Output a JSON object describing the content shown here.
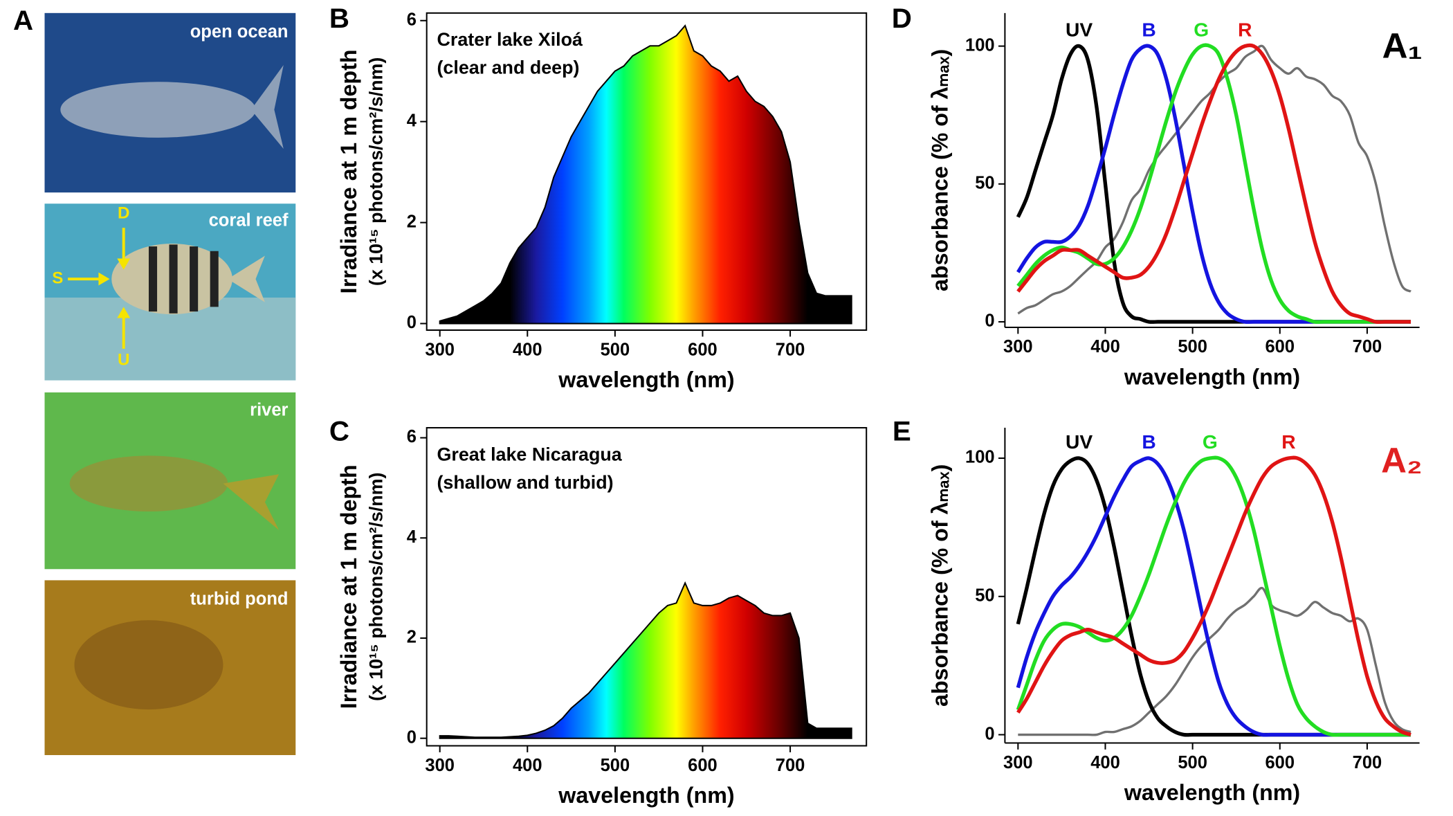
{
  "photo_panel": {
    "panel_label": "A",
    "photos": [
      {
        "label": "open ocean"
      },
      {
        "label": "coral reef",
        "arrows": [
          "D",
          "S",
          "U"
        ]
      },
      {
        "label": "river"
      },
      {
        "label": "turbid pond"
      }
    ]
  },
  "chart_data": [
    {
      "type": "area",
      "panel_label": "B",
      "title": [
        "Crater lake Xiloá",
        "(clear and deep)"
      ],
      "xlabel": "wavelength (nm)",
      "ylabel": [
        "Irradiance at 1 m depth",
        "(x 10¹⁵ photons/cm²/s/nm)"
      ],
      "x": [
        300,
        310,
        320,
        330,
        340,
        350,
        360,
        370,
        380,
        390,
        400,
        410,
        420,
        430,
        440,
        450,
        460,
        470,
        480,
        490,
        500,
        510,
        520,
        530,
        540,
        550,
        560,
        570,
        580,
        590,
        600,
        610,
        620,
        630,
        640,
        650,
        660,
        670,
        680,
        690,
        700,
        710,
        720,
        730,
        740,
        750,
        760,
        770
      ],
      "values": [
        0.05,
        0.1,
        0.15,
        0.25,
        0.35,
        0.45,
        0.6,
        0.8,
        1.2,
        1.5,
        1.7,
        1.9,
        2.3,
        2.9,
        3.3,
        3.7,
        4.0,
        4.3,
        4.6,
        4.8,
        5.0,
        5.1,
        5.3,
        5.4,
        5.5,
        5.5,
        5.6,
        5.7,
        5.9,
        5.4,
        5.3,
        5.1,
        5.0,
        4.8,
        4.9,
        4.6,
        4.4,
        4.3,
        4.1,
        3.8,
        3.2,
        2.0,
        1.0,
        0.6,
        0.55,
        0.55,
        0.55,
        0.55
      ],
      "xlim": [
        285,
        787
      ],
      "ylim": [
        -0.13,
        6.15
      ],
      "xticks": [
        300,
        400,
        500,
        600,
        700
      ],
      "yticks": [
        0,
        2,
        4,
        6
      ],
      "frame": true
    },
    {
      "type": "area",
      "panel_label": "C",
      "title": [
        "Great lake Nicaragua",
        "(shallow and turbid)"
      ],
      "xlabel": "wavelength (nm)",
      "ylabel": [
        "Irradiance at 1 m depth",
        "(x 10¹⁵ photons/cm²/s/nm)"
      ],
      "x": [
        300,
        310,
        320,
        330,
        340,
        350,
        360,
        370,
        380,
        390,
        400,
        410,
        420,
        430,
        440,
        450,
        460,
        470,
        480,
        490,
        500,
        510,
        520,
        530,
        540,
        550,
        560,
        570,
        580,
        590,
        600,
        610,
        620,
        630,
        640,
        650,
        660,
        670,
        680,
        690,
        700,
        710,
        720,
        730,
        740,
        750,
        760,
        770
      ],
      "values": [
        0.05,
        0.05,
        0.04,
        0.03,
        0.02,
        0.02,
        0.02,
        0.02,
        0.03,
        0.04,
        0.06,
        0.1,
        0.16,
        0.25,
        0.4,
        0.6,
        0.75,
        0.9,
        1.1,
        1.3,
        1.5,
        1.7,
        1.9,
        2.1,
        2.3,
        2.5,
        2.65,
        2.7,
        3.1,
        2.7,
        2.65,
        2.65,
        2.7,
        2.8,
        2.85,
        2.75,
        2.65,
        2.5,
        2.45,
        2.45,
        2.5,
        2.0,
        0.3,
        0.2,
        0.2,
        0.2,
        0.2,
        0.2
      ],
      "xlim": [
        285,
        787
      ],
      "ylim": [
        -0.15,
        6.2
      ],
      "xticks": [
        300,
        400,
        500,
        600,
        700
      ],
      "yticks": [
        0,
        2,
        4,
        6
      ],
      "frame": true
    },
    {
      "type": "line",
      "panel_label": "D",
      "corner_label": "A₁",
      "corner_color": "#000000",
      "xlabel": "wavelength (nm)",
      "ylabel": "absorbance (% of λₘₐₓ)",
      "x": [
        300,
        310,
        320,
        330,
        340,
        350,
        360,
        370,
        380,
        390,
        400,
        410,
        420,
        430,
        440,
        450,
        460,
        470,
        480,
        490,
        500,
        510,
        520,
        530,
        540,
        550,
        560,
        570,
        580,
        590,
        600,
        610,
        620,
        630,
        640,
        650,
        660,
        670,
        680,
        690,
        700,
        710,
        720,
        730,
        740,
        750
      ],
      "series": [
        {
          "color": "#707070",
          "values": [
            3,
            5,
            6,
            8,
            10,
            11,
            13,
            16,
            19,
            22,
            27,
            30,
            36,
            44,
            48,
            55,
            60,
            64,
            68,
            72,
            76,
            80,
            83,
            87,
            90,
            92,
            96,
            98,
            100,
            95,
            92,
            90,
            92,
            89,
            88,
            86,
            82,
            80,
            75,
            65,
            60,
            50,
            35,
            22,
            13,
            11
          ]
        },
        {
          "name": "UV",
          "color": "#000000",
          "values": [
            38,
            45,
            55,
            65,
            75,
            88,
            97,
            100,
            95,
            78,
            50,
            22,
            7,
            2,
            1,
            0,
            0,
            0,
            0,
            0,
            0,
            0,
            0,
            0,
            0,
            0,
            0,
            0,
            0,
            0,
            0,
            0,
            0,
            0,
            0,
            0,
            0,
            0,
            0,
            0,
            0,
            0,
            0,
            0,
            0,
            0
          ]
        },
        {
          "name": "B",
          "color": "#1414e0",
          "values": [
            18,
            23,
            27,
            29,
            29,
            29,
            31,
            35,
            42,
            52,
            63,
            75,
            86,
            95,
            99,
            100,
            97,
            88,
            74,
            57,
            40,
            25,
            14,
            7,
            3,
            1,
            0,
            0,
            0,
            0,
            0,
            0,
            0,
            0,
            0,
            0,
            0,
            0,
            0,
            0,
            0,
            0,
            0,
            0,
            0,
            0
          ]
        },
        {
          "name": "G",
          "color": "#22dd22",
          "values": [
            13,
            17,
            21,
            24,
            26,
            27,
            26,
            25,
            23,
            21,
            21,
            23,
            27,
            33,
            41,
            51,
            62,
            73,
            83,
            91,
            97,
            100,
            100,
            97,
            88,
            75,
            58,
            41,
            26,
            15,
            8,
            4,
            2,
            1,
            0,
            0,
            0,
            0,
            0,
            0,
            0,
            0,
            0,
            0,
            0,
            0
          ]
        },
        {
          "name": "R",
          "color": "#e01414",
          "values": [
            11,
            15,
            19,
            22,
            24,
            26,
            26,
            26,
            24,
            22,
            20,
            18,
            16,
            16,
            17,
            20,
            25,
            32,
            41,
            51,
            61,
            71,
            80,
            88,
            94,
            98,
            100,
            100,
            97,
            91,
            82,
            70,
            56,
            42,
            29,
            19,
            11,
            6,
            3,
            2,
            1,
            0,
            0,
            0,
            0,
            0
          ]
        }
      ],
      "xlim": [
        285,
        760
      ],
      "ylim": [
        -2,
        112
      ],
      "xticks": [
        300,
        400,
        500,
        600,
        700
      ],
      "yticks": [
        0,
        50,
        100
      ],
      "frame": false
    },
    {
      "type": "line",
      "panel_label": "E",
      "corner_label": "A₂",
      "corner_color": "#e02020",
      "xlabel": "wavelength (nm)",
      "ylabel": "absorbance (% of λₘₐₓ)",
      "x": [
        300,
        310,
        320,
        330,
        340,
        350,
        360,
        370,
        380,
        390,
        400,
        410,
        420,
        430,
        440,
        450,
        460,
        470,
        480,
        490,
        500,
        510,
        520,
        530,
        540,
        550,
        560,
        570,
        580,
        590,
        600,
        610,
        620,
        630,
        640,
        650,
        660,
        670,
        680,
        690,
        700,
        710,
        720,
        730,
        740,
        750
      ],
      "series": [
        {
          "color": "#707070",
          "values": [
            0,
            0,
            0,
            0,
            0,
            0,
            0,
            0,
            0,
            0,
            1,
            1,
            2,
            3,
            5,
            8,
            11,
            14,
            18,
            23,
            28,
            32,
            35,
            38,
            42,
            45,
            47,
            50,
            53,
            47,
            45,
            44,
            43,
            45,
            48,
            46,
            44,
            43,
            41,
            42,
            38,
            25,
            12,
            5,
            2,
            1
          ]
        },
        {
          "name": "UV",
          "color": "#000000",
          "values": [
            40,
            53,
            67,
            80,
            90,
            96,
            99,
            100,
            98,
            92,
            82,
            68,
            52,
            36,
            22,
            12,
            6,
            3,
            1,
            0,
            0,
            0,
            0,
            0,
            0,
            0,
            0,
            0,
            0,
            0,
            0,
            0,
            0,
            0,
            0,
            0,
            0,
            0,
            0,
            0,
            0,
            0,
            0,
            0,
            0,
            0
          ]
        },
        {
          "name": "B",
          "color": "#1414e0",
          "values": [
            17,
            28,
            37,
            44,
            50,
            54,
            57,
            61,
            66,
            72,
            79,
            86,
            92,
            97,
            99,
            100,
            98,
            93,
            85,
            74,
            60,
            45,
            31,
            19,
            11,
            6,
            3,
            1,
            0,
            0,
            0,
            0,
            0,
            0,
            0,
            0,
            0,
            0,
            0,
            0,
            0,
            0,
            0,
            0,
            0,
            0
          ]
        },
        {
          "name": "G",
          "color": "#22dd22",
          "values": [
            9,
            18,
            27,
            34,
            38,
            40,
            40,
            39,
            37,
            35,
            34,
            35,
            38,
            43,
            50,
            58,
            67,
            76,
            84,
            91,
            96,
            99,
            100,
            100,
            98,
            93,
            85,
            74,
            60,
            46,
            32,
            20,
            11,
            6,
            3,
            1,
            0,
            0,
            0,
            0,
            0,
            0,
            0,
            0,
            0,
            0
          ]
        },
        {
          "name": "R",
          "color": "#e01414",
          "values": [
            8,
            13,
            19,
            25,
            30,
            34,
            36,
            37,
            38,
            37,
            36,
            35,
            33,
            31,
            29,
            27,
            26,
            26,
            27,
            30,
            35,
            41,
            48,
            56,
            64,
            72,
            80,
            87,
            93,
            97,
            99,
            100,
            100,
            98,
            94,
            87,
            77,
            64,
            49,
            34,
            21,
            12,
            6,
            3,
            1,
            0
          ]
        }
      ],
      "xlim": [
        285,
        760
      ],
      "ylim": [
        -3,
        111
      ],
      "xticks": [
        300,
        400,
        500,
        600,
        700
      ],
      "yticks": [
        0,
        50,
        100
      ],
      "frame": false
    }
  ]
}
